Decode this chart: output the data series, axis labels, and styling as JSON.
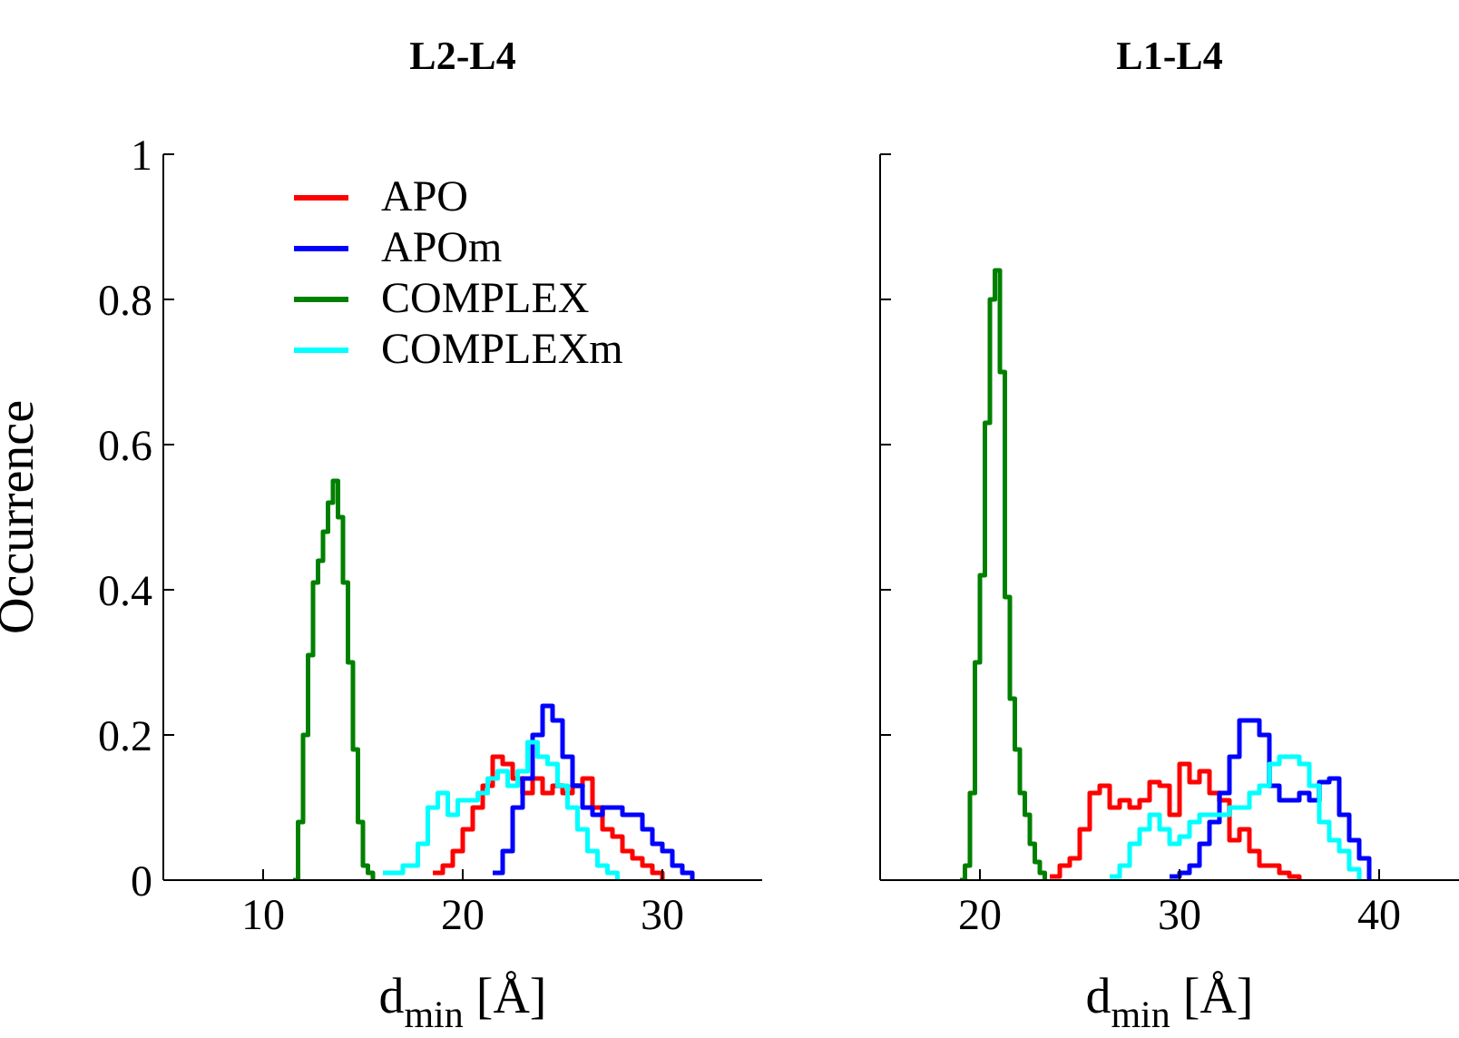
{
  "chart_data": [
    {
      "type": "step",
      "title": "L2-L4",
      "xlabel": "d$_{min}$ [Å]",
      "ylabel": "Occurrence",
      "xlim": [
        5,
        35
      ],
      "xticks": [
        10,
        20,
        30
      ],
      "ylim": [
        0,
        1
      ],
      "yticks": [
        0,
        0.2,
        0.4,
        0.6,
        0.8,
        1
      ],
      "legend": "top",
      "series": [
        {
          "name": "APO",
          "color": "#ff0000",
          "x": [
            18.5,
            19,
            19.5,
            20,
            20.5,
            21,
            21.5,
            22,
            22.5,
            23,
            23.5,
            24,
            24.5,
            25,
            25.5,
            26,
            26.5,
            27,
            27.5,
            28,
            28.5,
            29,
            29.5,
            30
          ],
          "values": [
            0.01,
            0.02,
            0.04,
            0.07,
            0.1,
            0.13,
            0.17,
            0.16,
            0.14,
            0.12,
            0.14,
            0.12,
            0.13,
            0.12,
            0.13,
            0.14,
            0.1,
            0.07,
            0.06,
            0.04,
            0.03,
            0.02,
            0.01,
            0
          ]
        },
        {
          "name": "APOm",
          "color": "#0000ff",
          "x": [
            21.5,
            22,
            22.5,
            23,
            23.5,
            24,
            24.5,
            25,
            25.5,
            26,
            26.5,
            27,
            27.5,
            28,
            28.5,
            29,
            29.5,
            30,
            30.5,
            31,
            31.5
          ],
          "values": [
            0.01,
            0.04,
            0.1,
            0.14,
            0.2,
            0.24,
            0.22,
            0.17,
            0.13,
            0.1,
            0.09,
            0.1,
            0.1,
            0.09,
            0.09,
            0.07,
            0.05,
            0.04,
            0.02,
            0.01,
            0
          ]
        },
        {
          "name": "COMPLEX",
          "color": "#008000",
          "x": [
            11.5,
            11.75,
            12,
            12.25,
            12.5,
            12.75,
            13,
            13.25,
            13.5,
            13.75,
            14,
            14.25,
            14.5,
            14.75,
            15,
            15.25,
            15.5
          ],
          "values": [
            0,
            0.08,
            0.2,
            0.31,
            0.41,
            0.44,
            0.48,
            0.52,
            0.55,
            0.5,
            0.41,
            0.3,
            0.18,
            0.08,
            0.02,
            0.01,
            0
          ]
        },
        {
          "name": "COMPLEXm",
          "color": "#00ffff",
          "x": [
            16,
            17,
            17.75,
            18.25,
            18.75,
            19.25,
            19.75,
            20.25,
            20.75,
            21.25,
            21.75,
            22.25,
            22.75,
            23.25,
            23.75,
            24.25,
            24.75,
            25.25,
            25.75,
            26.25,
            26.75,
            27.25,
            27.75
          ],
          "values": [
            0.01,
            0.02,
            0.05,
            0.1,
            0.12,
            0.09,
            0.11,
            0.11,
            0.12,
            0.14,
            0.15,
            0.13,
            0.15,
            0.19,
            0.17,
            0.16,
            0.13,
            0.1,
            0.07,
            0.04,
            0.02,
            0.01,
            0
          ]
        }
      ]
    },
    {
      "type": "step",
      "title": "L1-L4",
      "xlabel": "d$_{min}$ [Å]",
      "xlim": [
        15,
        44
      ],
      "xticks": [
        20,
        30,
        40
      ],
      "ylim": [
        0,
        1
      ],
      "yticks": [
        0,
        0.2,
        0.4,
        0.6,
        0.8,
        1
      ],
      "tick_labels": "x",
      "series": [
        {
          "color": "#ff0000",
          "x": [
            23.5,
            24,
            24.5,
            25,
            25.5,
            26,
            26.5,
            27,
            27.5,
            28,
            28.5,
            29,
            29.5,
            30,
            30.5,
            31,
            31.5,
            32,
            32.5,
            33,
            33.5,
            34,
            34.5,
            35,
            35.5,
            36
          ],
          "values": [
            0.005,
            0.02,
            0.03,
            0.07,
            0.12,
            0.13,
            0.1,
            0.11,
            0.1,
            0.11,
            0.135,
            0.13,
            0.09,
            0.16,
            0.135,
            0.15,
            0.12,
            0.11,
            0.055,
            0.07,
            0.04,
            0.02,
            0.02,
            0.01,
            0.005,
            0
          ]
        },
        {
          "color": "#0000ff",
          "x": [
            29.5,
            30,
            30.5,
            31,
            31.5,
            32,
            32.5,
            33,
            33.5,
            34,
            34.5,
            35,
            35.5,
            36,
            36.5,
            37,
            37.5,
            38,
            38.5,
            39,
            39.5
          ],
          "values": [
            0.005,
            0.01,
            0.02,
            0.05,
            0.08,
            0.12,
            0.17,
            0.22,
            0.22,
            0.2,
            0.13,
            0.11,
            0.11,
            0.12,
            0.11,
            0.135,
            0.14,
            0.09,
            0.055,
            0.03,
            0
          ]
        },
        {
          "color": "#008000",
          "x": [
            19,
            19.25,
            19.5,
            19.75,
            20,
            20.25,
            20.5,
            20.75,
            21,
            21.25,
            21.5,
            21.75,
            22,
            22.25,
            22.5,
            22.75,
            23,
            23.25
          ],
          "values": [
            0,
            0.02,
            0.12,
            0.3,
            0.42,
            0.63,
            0.8,
            0.84,
            0.7,
            0.39,
            0.25,
            0.18,
            0.12,
            0.09,
            0.05,
            0.025,
            0.01,
            0
          ]
        },
        {
          "color": "#00ffff",
          "x": [
            26.5,
            27,
            27.5,
            28,
            28.5,
            29,
            29.5,
            30,
            30.5,
            31,
            31.5,
            32,
            32.5,
            33,
            33.5,
            34,
            34.5,
            35,
            35.5,
            36,
            36.5,
            37,
            37.5,
            38,
            38.5,
            39
          ],
          "values": [
            0.005,
            0.02,
            0.05,
            0.07,
            0.09,
            0.07,
            0.05,
            0.06,
            0.08,
            0.09,
            0.09,
            0.09,
            0.1,
            0.1,
            0.12,
            0.13,
            0.16,
            0.17,
            0.17,
            0.16,
            0.13,
            0.08,
            0.055,
            0.04,
            0.015,
            0
          ]
        }
      ]
    }
  ]
}
